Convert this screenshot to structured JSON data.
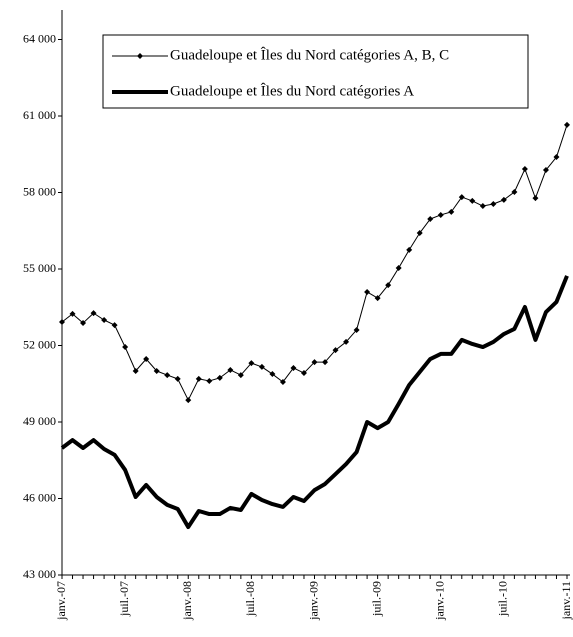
{
  "chart_data": {
    "type": "line",
    "categories": [
      "janv.-07",
      null,
      null,
      null,
      null,
      null,
      "juil.-07",
      null,
      null,
      null,
      null,
      null,
      "janv.-08",
      null,
      null,
      null,
      null,
      null,
      "juil.-08",
      null,
      null,
      null,
      null,
      null,
      "janv.-09",
      null,
      null,
      null,
      null,
      null,
      "juil.-09",
      null,
      null,
      null,
      null,
      null,
      "janv.-10",
      null,
      null,
      null,
      null,
      null,
      "juil.-10",
      null,
      null,
      null,
      null,
      null,
      "janv.-11"
    ],
    "series": [
      {
        "name": "Guadeloupe et Îles du Nord catégories A, B, C",
        "color": "#000000",
        "marker": "diamond",
        "width": 1,
        "values": [
          52920,
          53240,
          52880,
          53270,
          53000,
          52800,
          51940,
          51000,
          51470,
          51000,
          50840,
          50690,
          49860,
          50690,
          50610,
          50730,
          51040,
          50840,
          51310,
          51160,
          50880,
          50570,
          51120,
          50920,
          51350,
          51350,
          51820,
          52140,
          52610,
          54100,
          53860,
          54370,
          55040,
          55750,
          56410,
          56960,
          57120,
          57240,
          57820,
          57670,
          57470,
          57550,
          57710,
          58020,
          58920,
          57780,
          58880,
          59390,
          60650
        ]
      },
      {
        "name": "Guadeloupe et Îles du Nord catégories A",
        "color": "#000000",
        "marker": "none",
        "width": 4,
        "values": [
          47980,
          48290,
          47980,
          48290,
          47940,
          47710,
          47120,
          46060,
          46530,
          46060,
          45750,
          45590,
          44880,
          45510,
          45390,
          45390,
          45630,
          45550,
          46180,
          45940,
          45780,
          45670,
          46060,
          45900,
          46330,
          46570,
          46960,
          47350,
          47820,
          49000,
          48760,
          49000,
          49710,
          50450,
          50960,
          51470,
          51670,
          51670,
          52220,
          52060,
          51940,
          52140,
          52450,
          52650,
          53510,
          52220,
          53310,
          53710,
          54730
        ]
      }
    ],
    "ylim": [
      43000,
      65000
    ],
    "yticks": [
      {
        "value": 43000,
        "label": "43 000"
      },
      {
        "value": 46000,
        "label": "46 000"
      },
      {
        "value": 49000,
        "label": "49 000"
      },
      {
        "value": 52000,
        "label": "52 000"
      },
      {
        "value": 55000,
        "label": "55 000"
      },
      {
        "value": 58000,
        "label": "58 000"
      },
      {
        "value": 61000,
        "label": "61 000"
      },
      {
        "value": 64000,
        "label": "64 000"
      }
    ],
    "grid": false
  }
}
